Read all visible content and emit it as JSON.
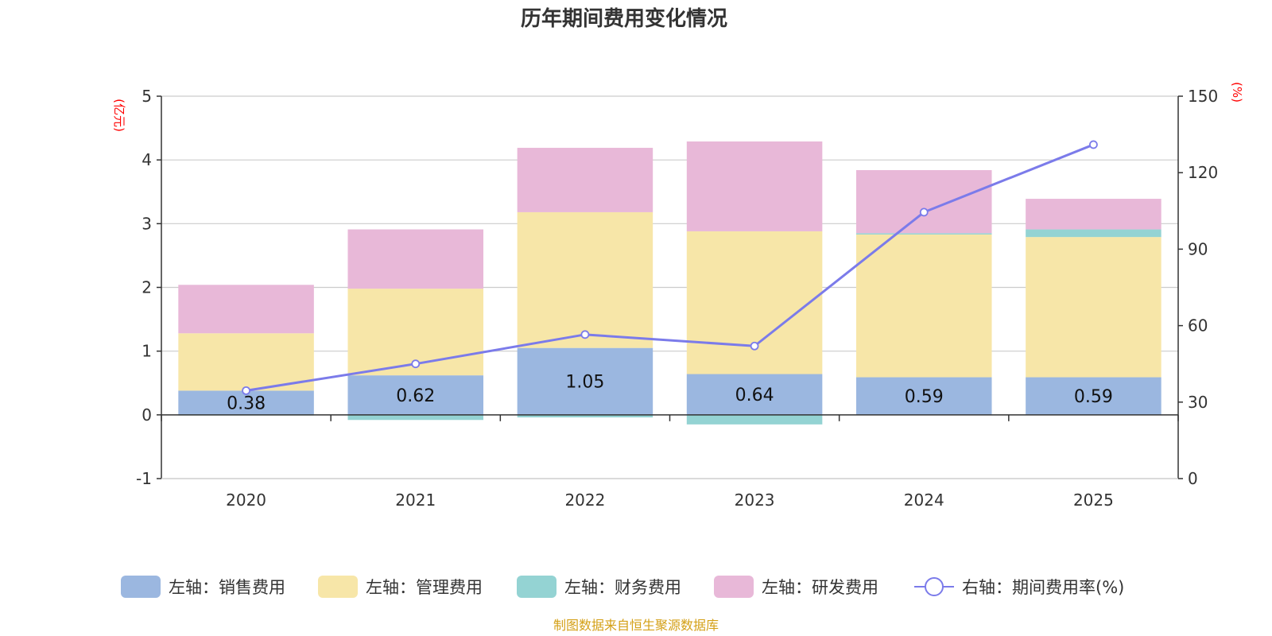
{
  "chart_data": {
    "type": "bar",
    "title": "历年期间费用变化情况",
    "categories": [
      "2020",
      "2021",
      "2022",
      "2023",
      "2024",
      "2025"
    ],
    "left_axis": {
      "unit": "(亿元)",
      "ylim": [
        -1,
        5
      ],
      "ticks": [
        -1,
        0,
        1,
        2,
        3,
        4,
        5
      ]
    },
    "right_axis": {
      "unit": "(%)",
      "ylim": [
        0,
        150
      ],
      "ticks": [
        0,
        30,
        60,
        90,
        120,
        150
      ]
    },
    "series": [
      {
        "name": "左轴：销售费用",
        "axis": "left",
        "kind": "bar",
        "color": "#9bb7e0",
        "values": [
          0.38,
          0.62,
          1.05,
          0.64,
          0.59,
          0.59
        ],
        "show_labels": true
      },
      {
        "name": "左轴：管理费用",
        "axis": "left",
        "kind": "bar",
        "color": "#f7e6a8",
        "values": [
          0.9,
          1.36,
          2.13,
          2.24,
          2.24,
          2.2
        ],
        "show_labels": false
      },
      {
        "name": "左轴：财务费用",
        "axis": "left",
        "kind": "bar",
        "color": "#94d3d3",
        "values": [
          -0.01,
          -0.08,
          -0.04,
          -0.15,
          0.02,
          0.12
        ],
        "show_labels": false
      },
      {
        "name": "左轴：研发费用",
        "axis": "left",
        "kind": "bar",
        "color": "#e8b8d8",
        "values": [
          0.76,
          0.93,
          1.01,
          1.41,
          0.99,
          0.48
        ],
        "show_labels": false
      },
      {
        "name": "右轴：期间费用率(%)",
        "axis": "right",
        "kind": "line",
        "color": "#7b7bea",
        "values": [
          34.5,
          45.0,
          56.5,
          52.0,
          104.5,
          131.0
        ],
        "show_labels": false
      }
    ],
    "source": "制图数据来自恒生聚源数据库"
  }
}
